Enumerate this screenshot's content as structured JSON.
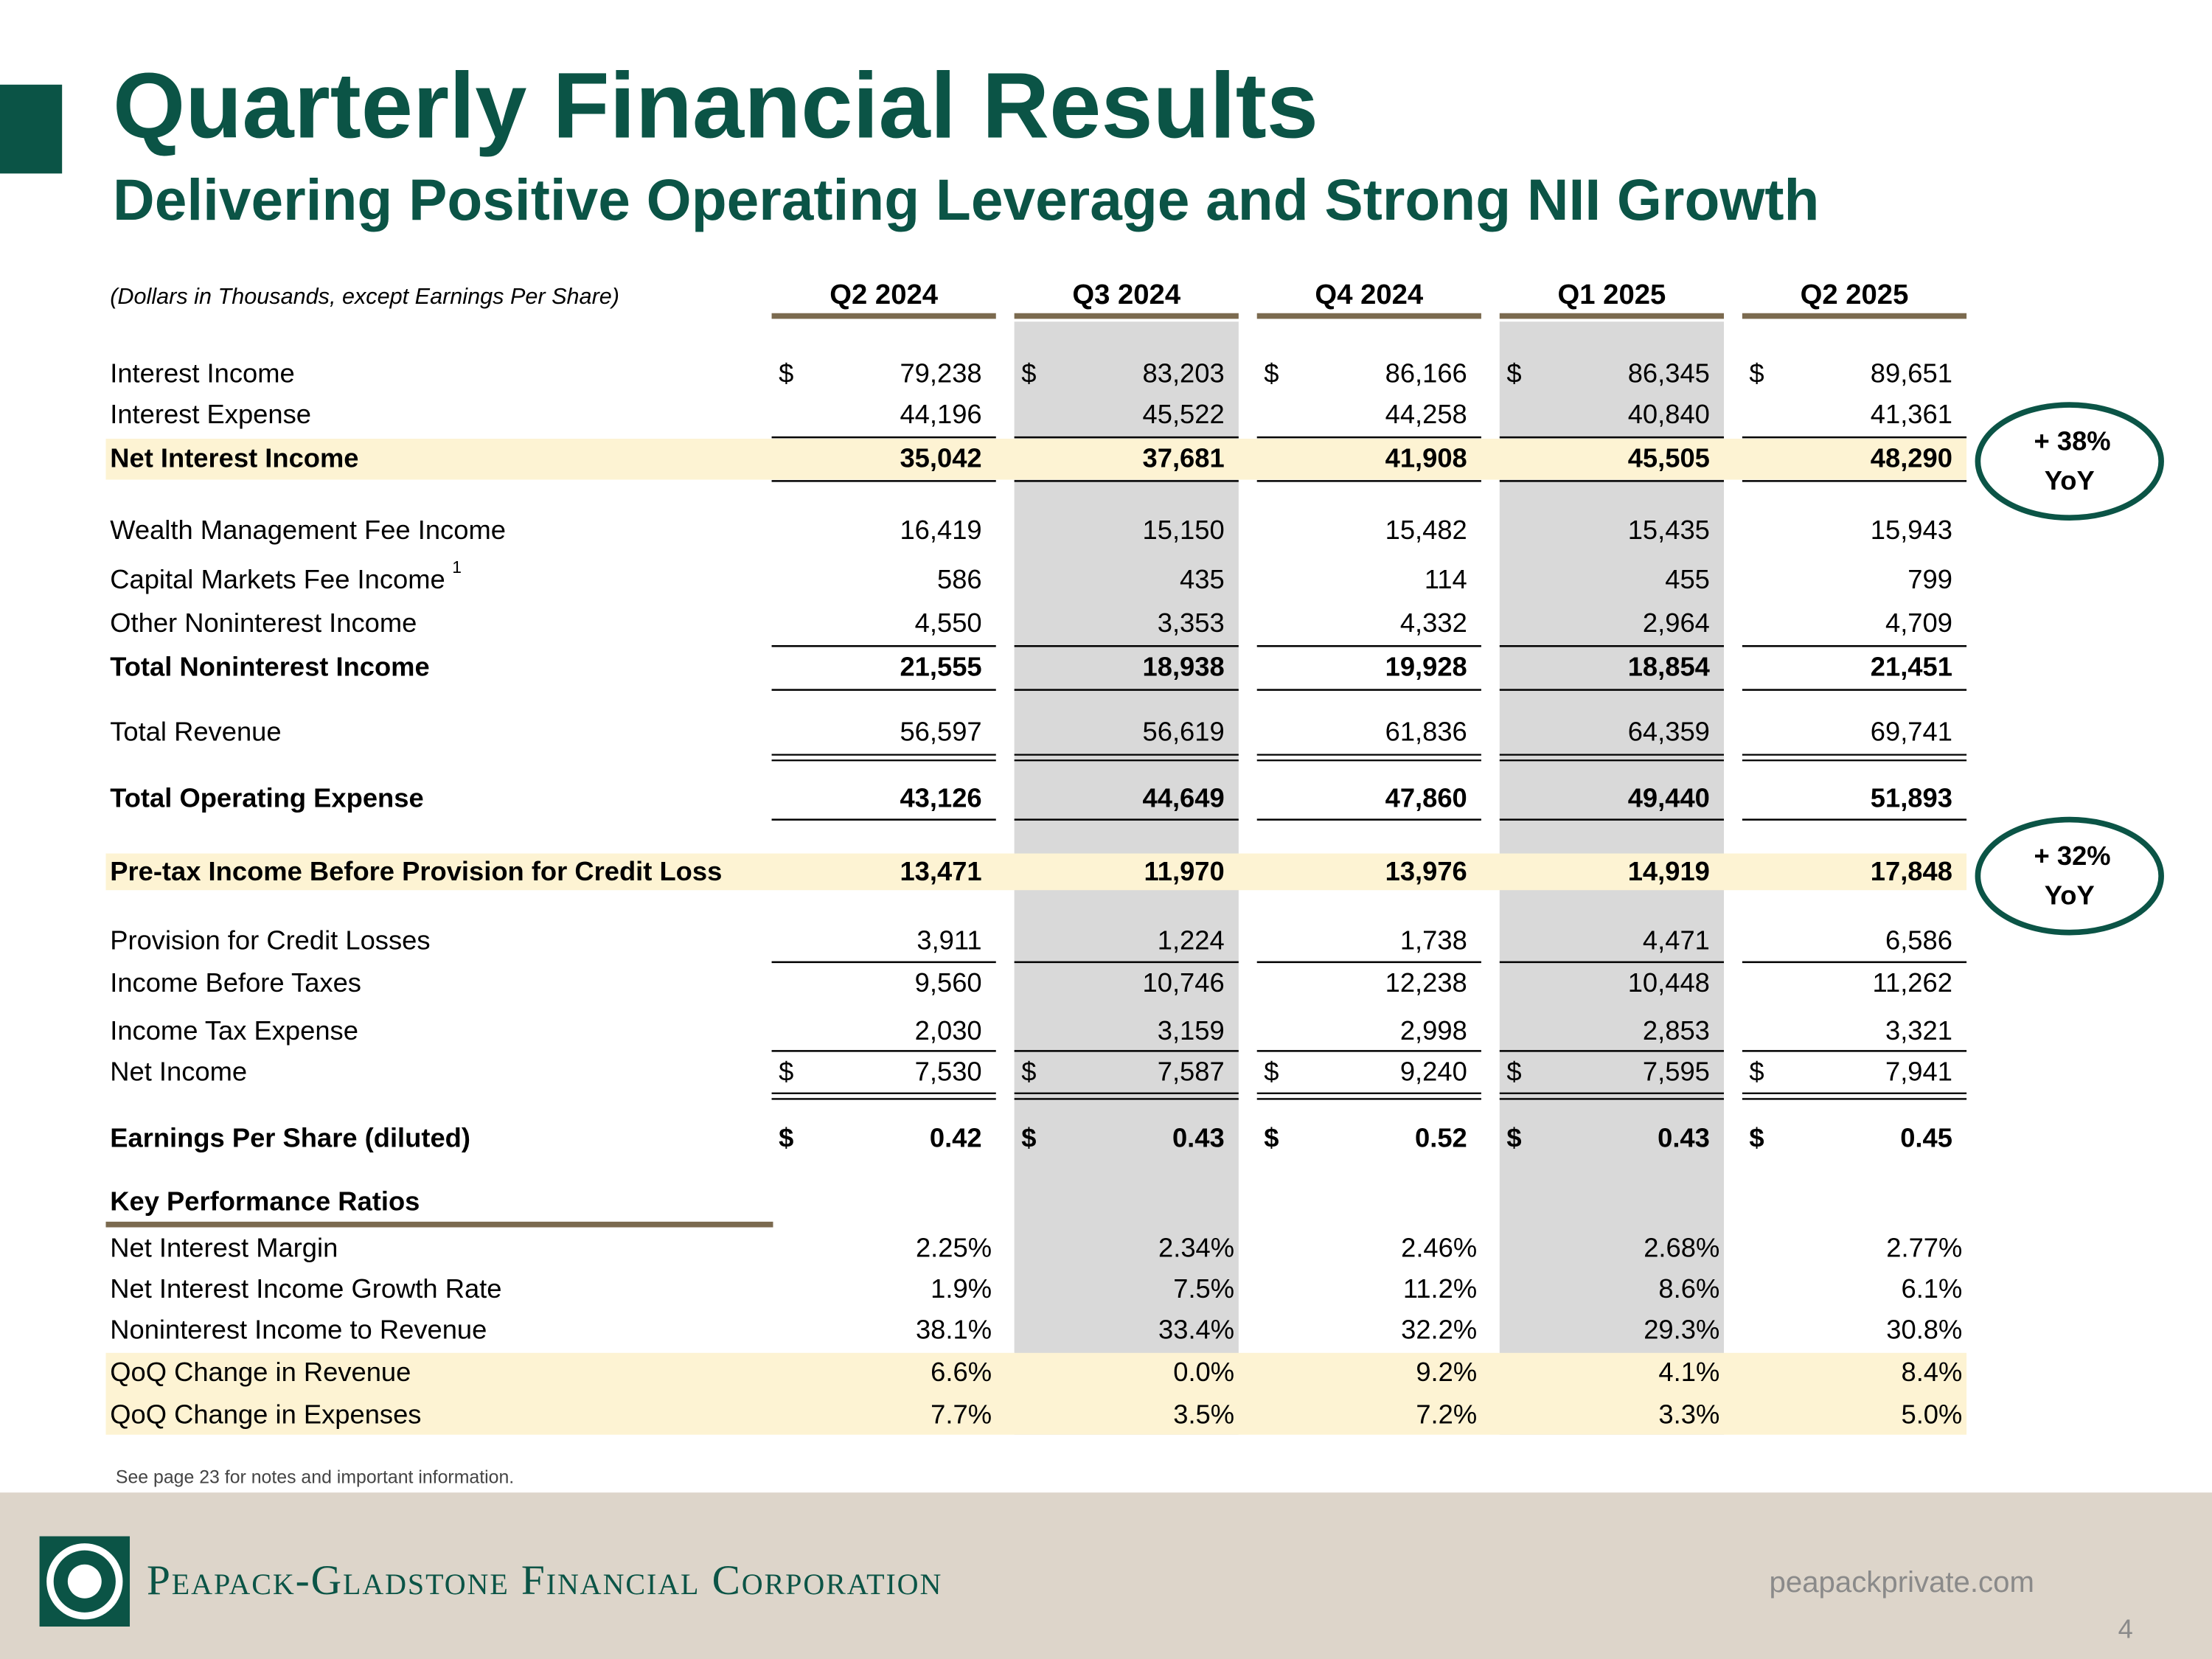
{
  "header": {
    "title": "Quarterly Financial Results",
    "subtitle": "Delivering Positive Operating Leverage and Strong NII Growth"
  },
  "table": {
    "note": "(Dollars in Thousands, except Earnings Per Share)",
    "columns": [
      "Q2 2024",
      "Q3 2024",
      "Q4 2024",
      "Q1 2025",
      "Q2 2025"
    ],
    "rows": [
      {
        "label": "Interest Income",
        "currency": "$",
        "values": [
          "79,238",
          "83,203",
          "86,166",
          "86,345",
          "89,651"
        ]
      },
      {
        "label": "Interest Expense",
        "values": [
          "44,196",
          "45,522",
          "44,258",
          "40,840",
          "41,361"
        ]
      },
      {
        "label": "Net Interest Income",
        "values": [
          "35,042",
          "37,681",
          "41,908",
          "45,505",
          "48,290"
        ]
      },
      {
        "label": "Wealth Management Fee Income",
        "values": [
          "16,419",
          "15,150",
          "15,482",
          "15,435",
          "15,943"
        ]
      },
      {
        "label": "Capital Markets Fee Income",
        "footnote": "1",
        "values": [
          "586",
          "435",
          "114",
          "455",
          "799"
        ]
      },
      {
        "label": "Other Noninterest Income",
        "values": [
          "4,550",
          "3,353",
          "4,332",
          "2,964",
          "4,709"
        ]
      },
      {
        "label": "Total Noninterest Income",
        "values": [
          "21,555",
          "18,938",
          "19,928",
          "18,854",
          "21,451"
        ]
      },
      {
        "label": "Total Revenue",
        "values": [
          "56,597",
          "56,619",
          "61,836",
          "64,359",
          "69,741"
        ]
      },
      {
        "label": "Total Operating Expense",
        "values": [
          "43,126",
          "44,649",
          "47,860",
          "49,440",
          "51,893"
        ]
      },
      {
        "label": "Pre-tax Income Before Provision for Credit Loss",
        "values": [
          "13,471",
          "11,970",
          "13,976",
          "14,919",
          "17,848"
        ]
      },
      {
        "label": "Provision for Credit Losses",
        "values": [
          "3,911",
          "1,224",
          "1,738",
          "4,471",
          "6,586"
        ]
      },
      {
        "label": "Income Before Taxes",
        "values": [
          "9,560",
          "10,746",
          "12,238",
          "10,448",
          "11,262"
        ]
      },
      {
        "label": "Income Tax Expense",
        "values": [
          "2,030",
          "3,159",
          "2,998",
          "2,853",
          "3,321"
        ]
      },
      {
        "label": "Net Income",
        "currency": "$",
        "values": [
          "7,530",
          "7,587",
          "9,240",
          "7,595",
          "7,941"
        ]
      },
      {
        "label": "Earnings Per Share (diluted)",
        "currency": "$",
        "values": [
          "0.42",
          "0.43",
          "0.52",
          "0.43",
          "0.45"
        ]
      },
      {
        "label": "Key Performance Ratios"
      },
      {
        "label": "Net Interest Margin",
        "values": [
          "2.25%",
          "2.34%",
          "2.46%",
          "2.68%",
          "2.77%"
        ]
      },
      {
        "label": "Net Interest Income Growth Rate",
        "values": [
          "1.9%",
          "7.5%",
          "11.2%",
          "8.6%",
          "6.1%"
        ]
      },
      {
        "label": "Noninterest Income to Revenue",
        "values": [
          "38.1%",
          "33.4%",
          "32.2%",
          "29.3%",
          "30.8%"
        ]
      },
      {
        "label": "QoQ Change in Revenue",
        "values": [
          "6.6%",
          "0.0%",
          "9.2%",
          "4.1%",
          "8.4%"
        ]
      },
      {
        "label": "QoQ Change in Expenses",
        "values": [
          "7.7%",
          "3.5%",
          "7.2%",
          "3.3%",
          "5.0%"
        ]
      }
    ]
  },
  "callouts": [
    {
      "change": "+ 38%",
      "period": "YoY"
    },
    {
      "change": "+ 32%",
      "period": "YoY"
    }
  ],
  "footer": {
    "note": "See page 23 for notes and important information.",
    "company": "Peapack-Gladstone Financial Corporation",
    "website": "peapackprivate.com",
    "page": "4"
  }
}
